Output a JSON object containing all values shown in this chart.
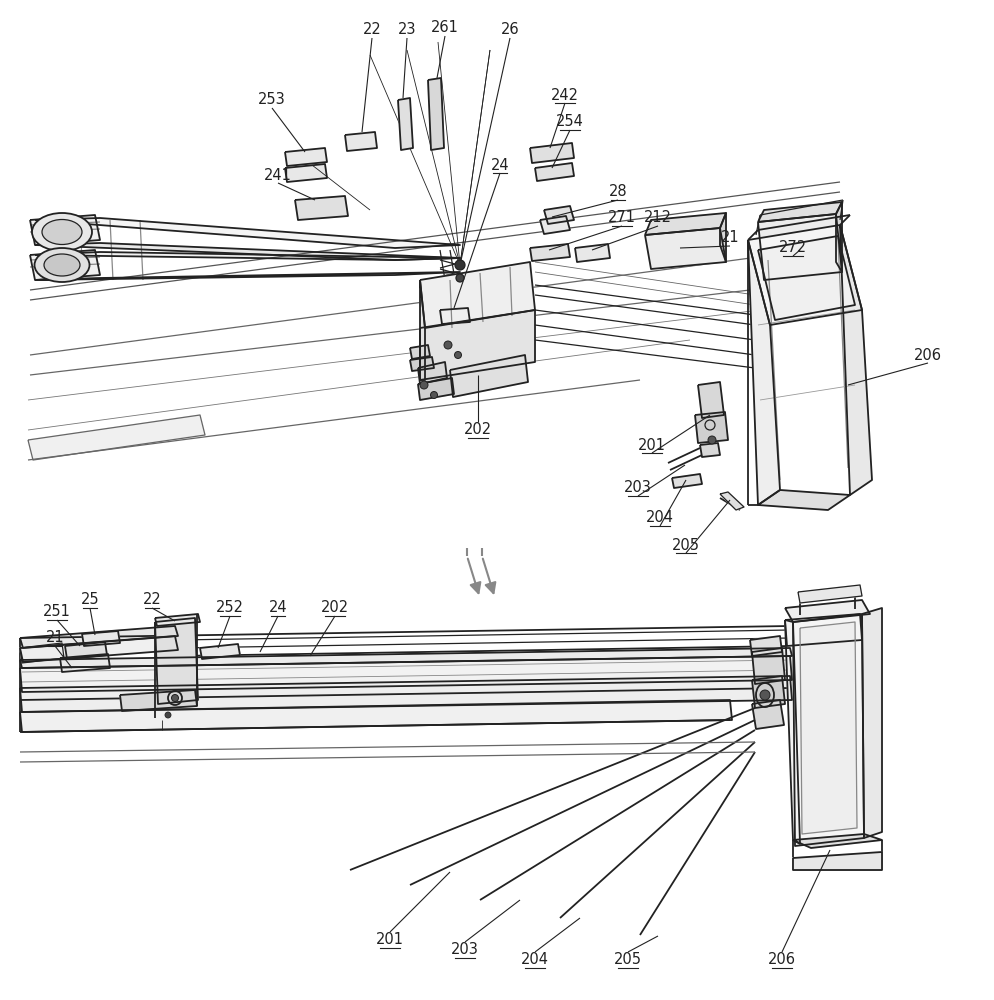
{
  "bg_color": "#ffffff",
  "line_color": "#222222",
  "lw_main": 1.3,
  "lw_med": 0.9,
  "lw_thin": 0.6,
  "font_size": 10.5
}
